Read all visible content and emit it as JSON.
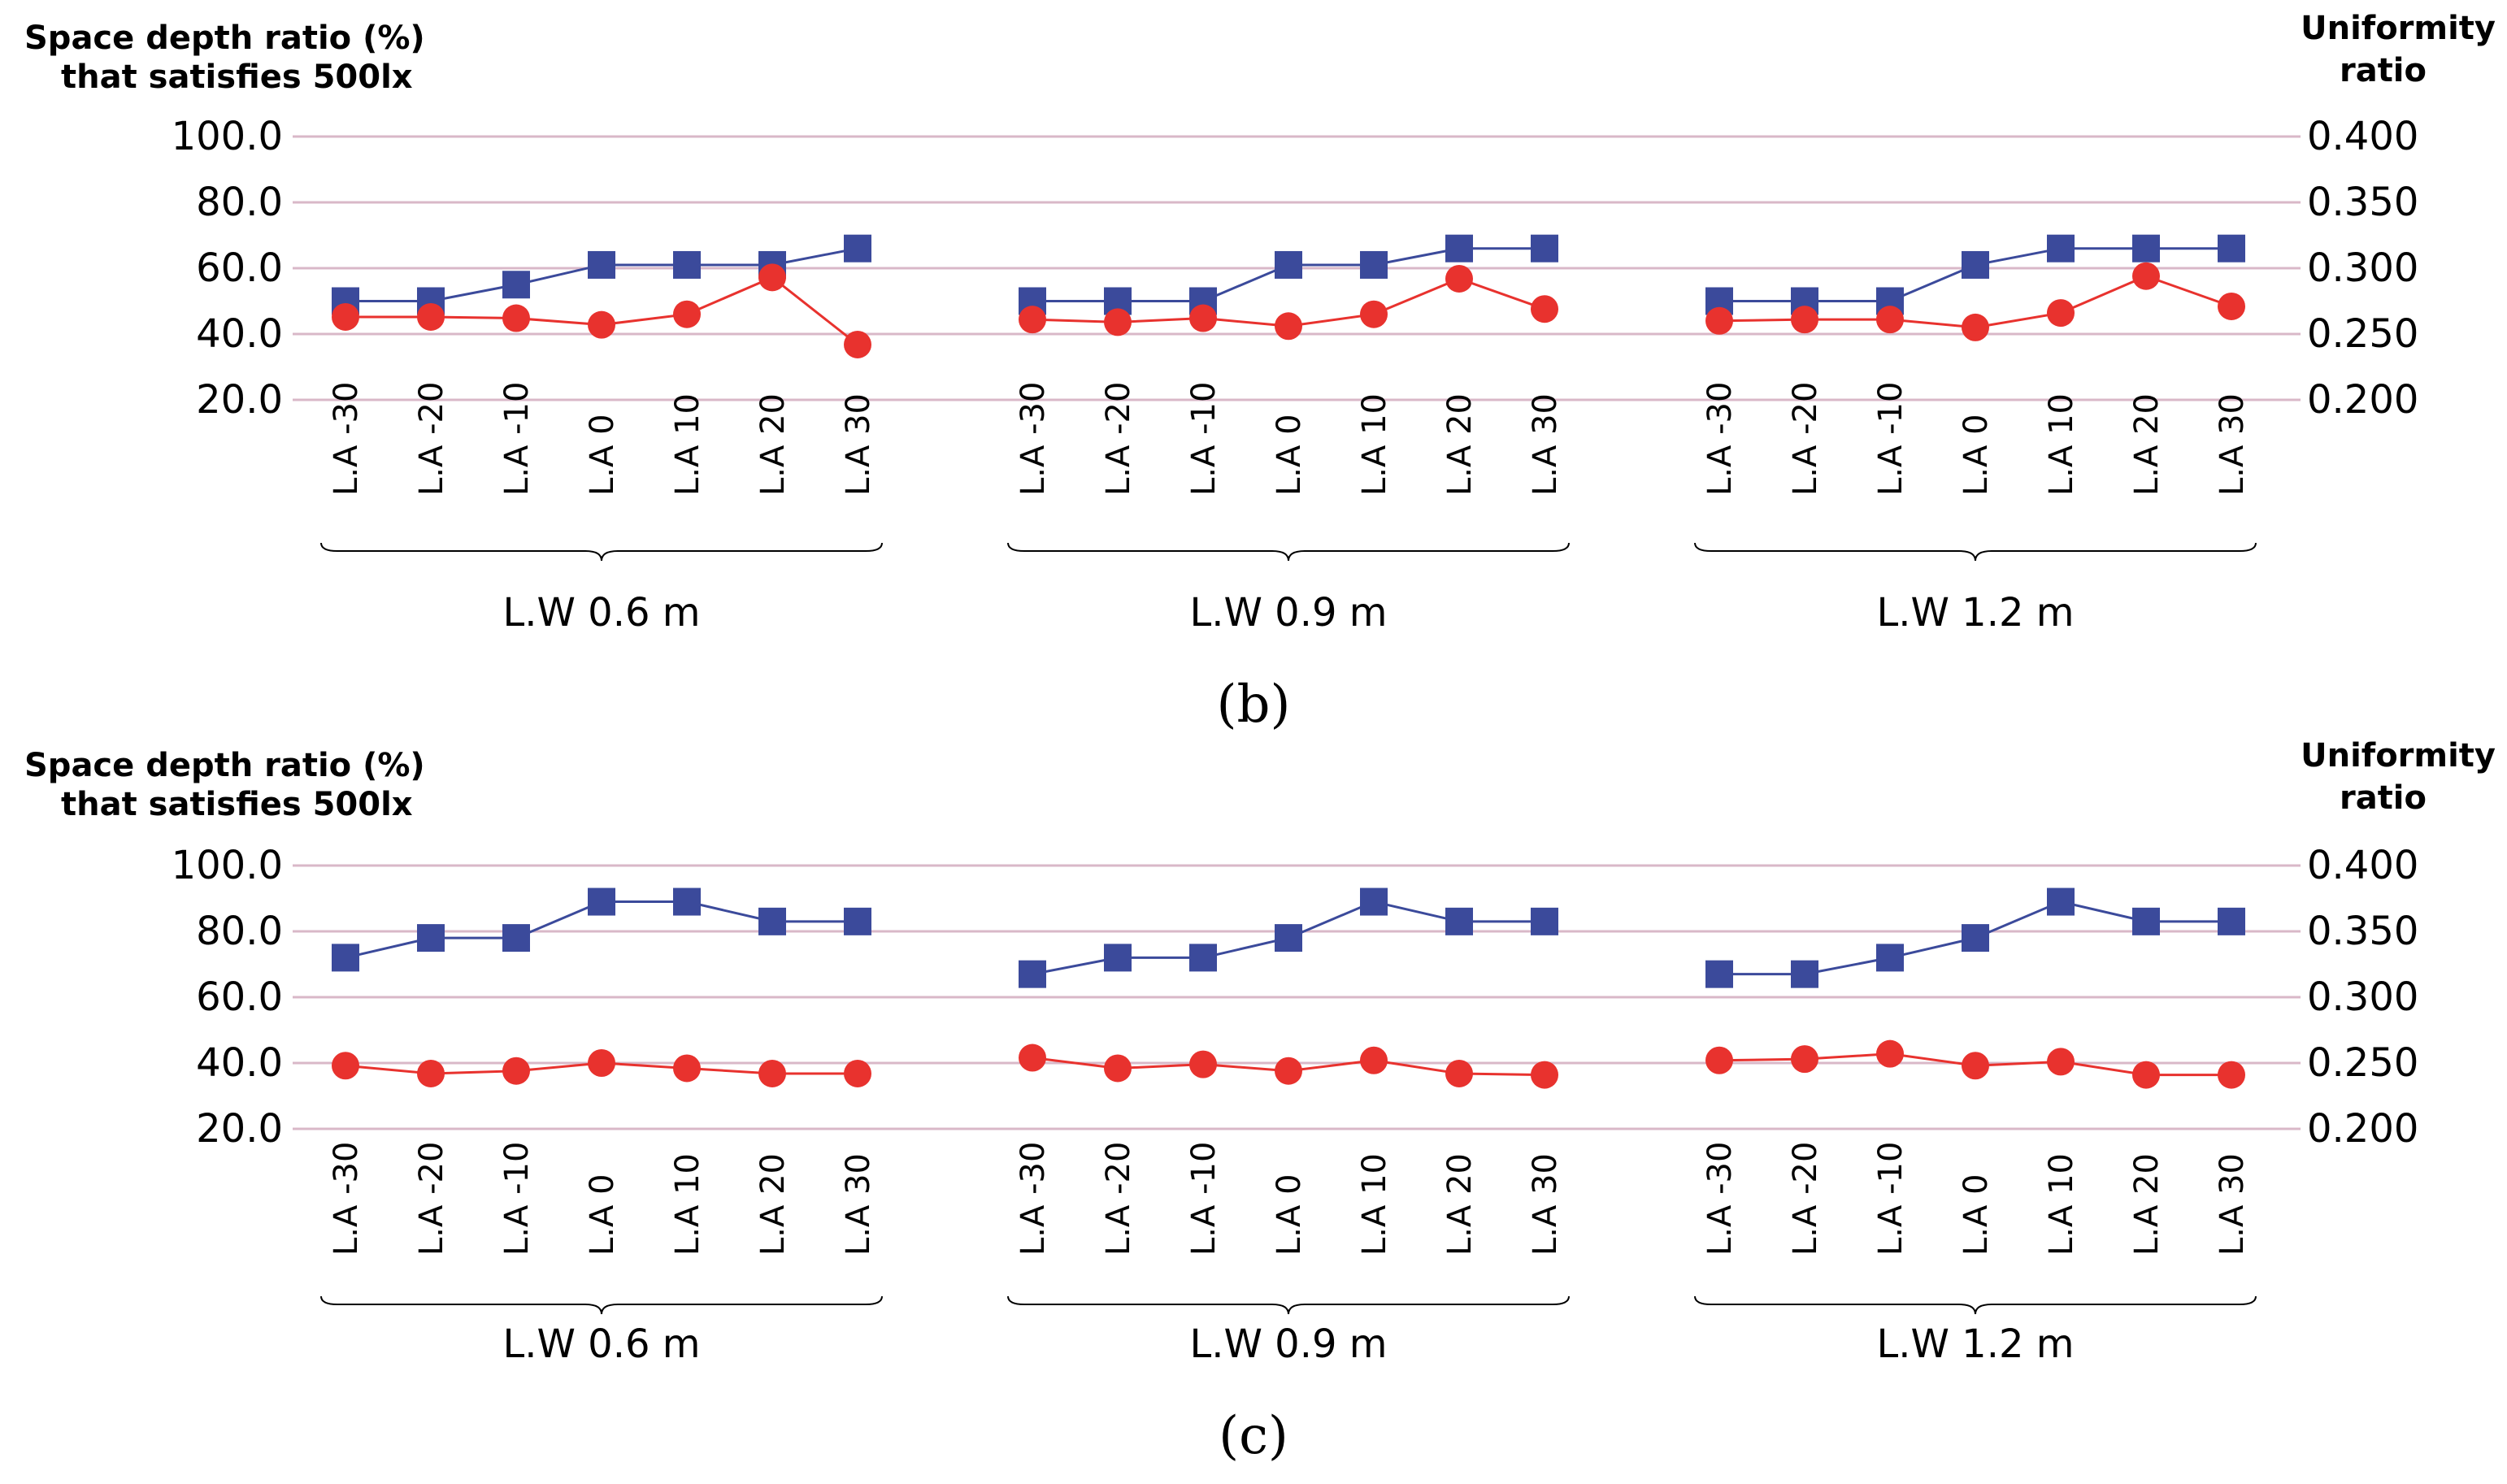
{
  "chart_data": [
    {
      "type": "line",
      "panel_label": "(b)",
      "left_axis_title": [
        "Space depth ratio (%)",
        "that satisfies 500lx"
      ],
      "right_axis_title": [
        "Uniformity",
        "ratio"
      ],
      "left_ticks": [
        "100.0",
        "80.0",
        "60.0",
        "40.0",
        "20.0"
      ],
      "right_ticks": [
        "0.400",
        "0.350",
        "0.300",
        "0.250",
        "0.200"
      ],
      "ylim_left": [
        20,
        100
      ],
      "ylim_right": [
        0.2,
        0.4
      ],
      "categories": [
        "L.A -30",
        "L.A -20",
        "L.A -10",
        "L.A 0",
        "L.A 10",
        "L.A 20",
        "L.A 30"
      ],
      "groups": [
        "L.W 0.6 m",
        "L.W 0.9 m",
        "L.W 1.2   m"
      ],
      "colors": {
        "space_depth": "#3b4a9b",
        "uniformity": "#e8322e",
        "grid": "#d9b8c8"
      },
      "series": [
        {
          "name": "Space depth ratio",
          "axis": "left",
          "marker": "square",
          "values": [
            [
              50,
              50,
              55,
              61,
              61,
              61,
              66
            ],
            [
              50,
              50,
              50,
              61,
              61,
              66,
              66
            ],
            [
              50,
              50,
              50,
              61,
              66,
              66,
              66
            ]
          ]
        },
        {
          "name": "Uniformity ratio",
          "axis": "right",
          "marker": "circle",
          "values": [
            [
              0.263,
              0.263,
              0.262,
              0.257,
              0.265,
              0.293,
              0.242
            ],
            [
              0.261,
              0.259,
              0.262,
              0.256,
              0.265,
              0.292,
              0.269
            ],
            [
              0.26,
              0.261,
              0.261,
              0.255,
              0.266,
              0.294,
              0.271
            ]
          ]
        }
      ]
    },
    {
      "type": "line",
      "panel_label": "(c)",
      "left_axis_title": [
        "Space depth ratio (%)",
        "that satisfies 500lx"
      ],
      "right_axis_title": [
        "Uniformity",
        "ratio"
      ],
      "left_ticks": [
        "100.0",
        "80.0",
        "60.0",
        "40.0",
        "20.0"
      ],
      "right_ticks": [
        "0.400",
        "0.350",
        "0.300",
        "0.250",
        "0.200"
      ],
      "ylim_left": [
        20,
        100
      ],
      "ylim_right": [
        0.2,
        0.4
      ],
      "categories": [
        "L.A -30",
        "L.A -20",
        "L.A -10",
        "L.A 0",
        "L.A 10",
        "L.A 20",
        "L.A 30"
      ],
      "groups": [
        "L.W 0.6 m",
        "L.W 0.9 m",
        "L.W 1.2   m"
      ],
      "colors": {
        "space_depth": "#3b4a9b",
        "uniformity": "#e8322e",
        "grid": "#d9b8c8"
      },
      "series": [
        {
          "name": "Space depth ratio",
          "axis": "left",
          "marker": "square",
          "values": [
            [
              72,
              78,
              78,
              89,
              89,
              83,
              83
            ],
            [
              67,
              72,
              72,
              78,
              89,
              83,
              83
            ],
            [
              67,
              67,
              72,
              78,
              89,
              83,
              83
            ]
          ]
        },
        {
          "name": "Uniformity ratio",
          "axis": "right",
          "marker": "circle",
          "values": [
            [
              0.248,
              0.242,
              0.244,
              0.25,
              0.246,
              0.242,
              0.242
            ],
            [
              0.254,
              0.246,
              0.249,
              0.244,
              0.252,
              0.242,
              0.241
            ],
            [
              0.252,
              0.253,
              0.257,
              0.248,
              0.251,
              0.241,
              0.241
            ]
          ]
        }
      ]
    }
  ]
}
